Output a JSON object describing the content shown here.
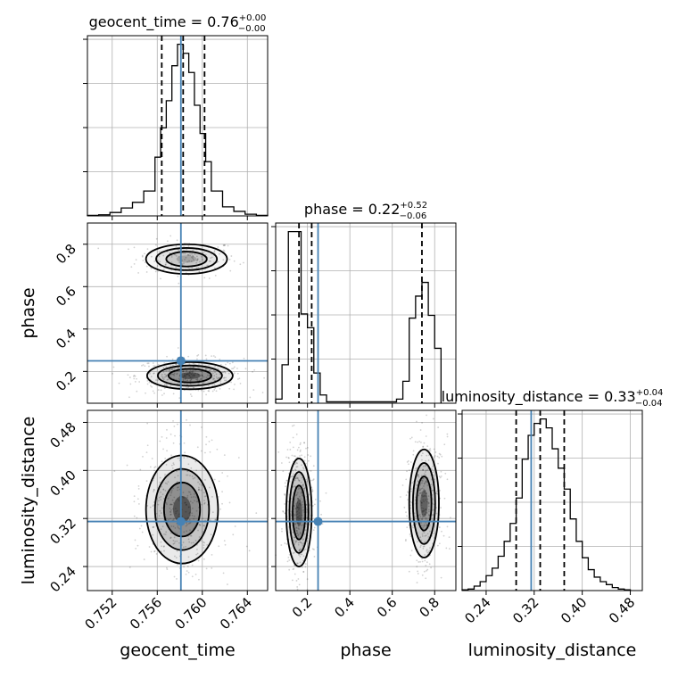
{
  "chart_data": {
    "type": "corner",
    "parameters": [
      "geocent_time",
      "phase",
      "luminosity_distance"
    ],
    "truth": {
      "geocent_time": 0.7581,
      "phase": 0.25,
      "luminosity_distance": 0.315
    },
    "truth_color": "#4682b4",
    "grid": true,
    "panels": {
      "geocent_time": {
        "title": "geocent_time = 0.76",
        "title_plus": "+0.00",
        "title_minus": "−0.00",
        "xlim": [
          0.7498,
          0.7658
        ],
        "quantiles": [
          0.7564,
          0.7583,
          0.7602
        ],
        "hist_edges": [
          0.7498,
          0.7508,
          0.7518,
          0.7528,
          0.7538,
          0.7548,
          0.7558,
          0.7563,
          0.7568,
          0.7573,
          0.7578,
          0.7583,
          0.7588,
          0.7593,
          0.7598,
          0.7603,
          0.7608,
          0.7618,
          0.7628,
          0.7638,
          0.7648,
          0.7658
        ],
        "hist_values": [
          0.5,
          1,
          3,
          7,
          12,
          22,
          52,
          78,
          102,
          133,
          152,
          144,
          127,
          98,
          73,
          48,
          22,
          8,
          4,
          1.5,
          0.5
        ]
      },
      "phase": {
        "title": "phase = 0.22",
        "title_plus": "+0.52",
        "title_minus": "−0.06",
        "xlim": [
          0.05,
          0.9
        ],
        "quantiles": [
          0.16,
          0.22,
          0.74
        ],
        "hist_edges": [
          0.05,
          0.08,
          0.11,
          0.14,
          0.17,
          0.2,
          0.23,
          0.26,
          0.29,
          0.62,
          0.65,
          0.68,
          0.71,
          0.74,
          0.77,
          0.8,
          0.83
        ],
        "hist_values": [
          3,
          28,
          125,
          125,
          65,
          55,
          22,
          6,
          1,
          3,
          16,
          62,
          78,
          88,
          64,
          40
        ]
      },
      "luminosity_distance": {
        "title": "luminosity_distance = 0.33",
        "title_plus": "+0.04",
        "title_minus": "−0.04",
        "xlim": [
          0.2,
          0.5
        ],
        "quantiles": [
          0.29,
          0.33,
          0.37
        ],
        "hist_edges": [
          0.2,
          0.21,
          0.22,
          0.23,
          0.24,
          0.25,
          0.26,
          0.27,
          0.28,
          0.29,
          0.3,
          0.31,
          0.32,
          0.33,
          0.34,
          0.35,
          0.36,
          0.37,
          0.38,
          0.39,
          0.4,
          0.41,
          0.42,
          0.43,
          0.44,
          0.45,
          0.46,
          0.47,
          0.48
        ],
        "hist_values": [
          0.5,
          1,
          3,
          6,
          10,
          15,
          23,
          33,
          45,
          62,
          88,
          104,
          112,
          115,
          109,
          95,
          82,
          68,
          48,
          33,
          22,
          14,
          9,
          6,
          4,
          2,
          1,
          0.5
        ]
      }
    },
    "axes": {
      "geocent_time": {
        "ticks": [
          0.752,
          0.756,
          0.76,
          0.764
        ],
        "tick_labels": [
          "0.752",
          "0.756",
          "0.760",
          "0.764"
        ],
        "label": "geocent_time"
      },
      "phase": {
        "lim": [
          0.05,
          0.9
        ],
        "ticks": [
          0.2,
          0.4,
          0.6,
          0.8
        ],
        "tick_labels": [
          "0.2",
          "0.4",
          "0.6",
          "0.8"
        ],
        "label": "phase"
      },
      "luminosity_distance": {
        "lim": [
          0.2,
          0.5
        ],
        "ticks": [
          0.24,
          0.32,
          0.4,
          0.48
        ],
        "tick_labels": [
          "0.24",
          "0.32",
          "0.40",
          "0.48"
        ],
        "label": "luminosity_distance"
      }
    },
    "contours_2d": [
      {
        "x": "geocent_time",
        "y": "phase",
        "modes": [
          {
            "cx": 0.7586,
            "cy": 0.73,
            "sx": 0.0018,
            "sy": 0.035,
            "w": 0.45
          },
          {
            "cx": 0.7589,
            "cy": 0.18,
            "sx": 0.0019,
            "sy": 0.032,
            "w": 1.0
          }
        ]
      },
      {
        "x": "geocent_time",
        "y": "luminosity_distance",
        "modes": [
          {
            "cx": 0.7582,
            "cy": 0.335,
            "sx": 0.0016,
            "sy": 0.045,
            "w": 1.0
          }
        ]
      },
      {
        "x": "phase",
        "y": "luminosity_distance",
        "modes": [
          {
            "cx": 0.16,
            "cy": 0.33,
            "sx": 0.03,
            "sy": 0.045,
            "w": 1.0
          },
          {
            "cx": 0.75,
            "cy": 0.345,
            "sx": 0.035,
            "sy": 0.045,
            "w": 0.9
          }
        ]
      }
    ]
  }
}
